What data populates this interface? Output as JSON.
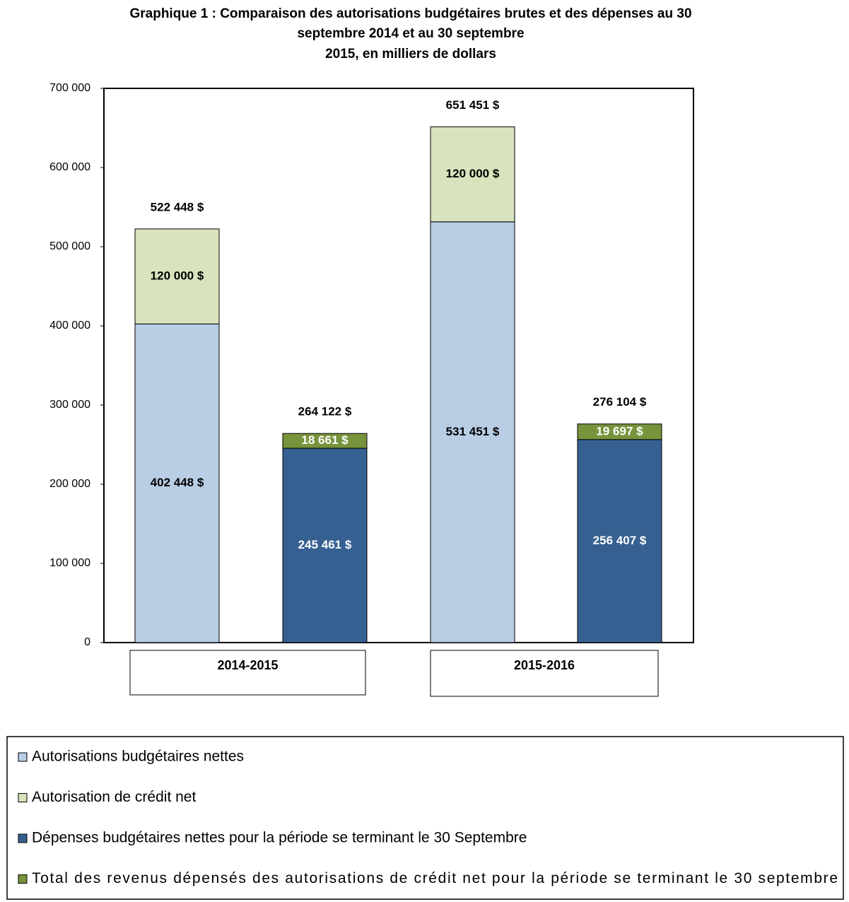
{
  "chart_data": {
    "type": "stacked_bar",
    "title": [
      "Graphique 1 : Comparaison des autorisations budgétaires brutes et des dépenses au 30",
      "septembre 2014 et au 30 septembre",
      "2015, en milliers de dollars"
    ],
    "categories": [
      "2014-2015",
      "2015-2016"
    ],
    "series": [
      {
        "name": "Autorisations budgétaires nettes",
        "color": "#b9cde5",
        "stack": 0,
        "label_color": "#000000",
        "values": [
          402448,
          531451
        ],
        "value_labels": [
          "402 448 $",
          "531 451 $"
        ]
      },
      {
        "name": "Autorisation de crédit net",
        "color": "#d7e4bd",
        "stack": 0,
        "label_color": "#000000",
        "values": [
          120000,
          120000
        ],
        "value_labels": [
          "120 000 $",
          "120 000 $"
        ]
      },
      {
        "name": "Dépenses budgétaires nettes pour la période se terminant le 30 Septembre",
        "color": "#376092",
        "stack": 1,
        "label_color": "#ffffff",
        "values": [
          245461,
          256407
        ],
        "value_labels": [
          "245 461 $",
          "256 407 $"
        ]
      },
      {
        "name": "Total des revenus dépensés des autorisations de crédit net pour la période se terminant le 30 septembre",
        "color": "#77933c",
        "stack": 1,
        "label_color": "#ffffff",
        "values": [
          18661,
          19697
        ],
        "value_labels": [
          "18 661 $",
          "19 697 $"
        ]
      }
    ],
    "stack_totals": [
      [
        522448,
        264122
      ],
      [
        651451,
        276104
      ]
    ],
    "stack_total_labels": [
      [
        "522 448 $",
        "264 122 $"
      ],
      [
        "651 451 $",
        "276 104 $"
      ]
    ],
    "ylim": [
      0,
      700000
    ],
    "yticks": [
      {
        "value": 0,
        "label": "0"
      },
      {
        "value": 100000,
        "label": "100 000"
      },
      {
        "value": 200000,
        "label": "200 000"
      },
      {
        "value": 300000,
        "label": "300 000"
      },
      {
        "value": 400000,
        "label": "400 000"
      },
      {
        "value": 500000,
        "label": "500 000"
      },
      {
        "value": 600000,
        "label": "600 000"
      },
      {
        "value": 700000,
        "label": "700 000"
      }
    ],
    "grid": false,
    "legend": "bottom"
  }
}
